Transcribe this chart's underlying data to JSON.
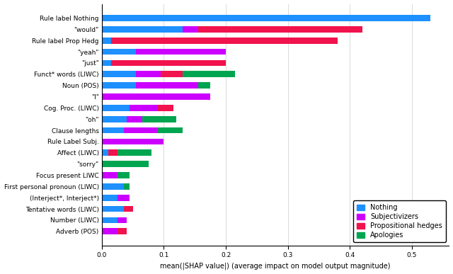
{
  "categories": [
    "Rule label Nothing",
    "\"would\"",
    "Rule label Prop Hedg",
    "\"yeah\"",
    "\"just\"",
    "Funct* words (LIWC)",
    "Noun (POS)",
    "\"I\"",
    "Cog. Proc. (LIWC)",
    "\"oh\"",
    "Clause lengths",
    "Rule Label Subj.",
    "Affect (LIWC)",
    "\"sorry\"",
    "Focus present LIWC",
    "First personal pronoun (LIWC)",
    "(Interject*, Interject*)",
    "Tentative words (LIWC)",
    "Number (LIWC)",
    "Adverb (POS)"
  ],
  "nothing": [
    0.53,
    0.13,
    0.015,
    0.055,
    0.015,
    0.055,
    0.055,
    0.0,
    0.045,
    0.04,
    0.035,
    0.0,
    0.01,
    0.0,
    0.0,
    0.035,
    0.025,
    0.035,
    0.025,
    0.0
  ],
  "subjectivizers": [
    0.0,
    0.025,
    0.0,
    0.145,
    0.0,
    0.04,
    0.1,
    0.175,
    0.045,
    0.025,
    0.055,
    0.1,
    0.0,
    0.0,
    0.025,
    0.0,
    0.02,
    0.0,
    0.015,
    0.025
  ],
  "prop_hedges": [
    0.0,
    0.265,
    0.365,
    0.0,
    0.185,
    0.035,
    0.0,
    0.0,
    0.025,
    0.0,
    0.0,
    0.0,
    0.015,
    0.0,
    0.0,
    0.0,
    0.0,
    0.015,
    0.0,
    0.015
  ],
  "apologies": [
    0.0,
    0.0,
    0.0,
    0.0,
    0.0,
    0.085,
    0.02,
    0.0,
    0.0,
    0.055,
    0.04,
    0.0,
    0.055,
    0.075,
    0.02,
    0.01,
    0.0,
    0.0,
    0.0,
    0.0
  ],
  "colors": {
    "nothing": "#1E90FF",
    "subjectivizers": "#CC00FF",
    "prop_hedges": "#F0134D",
    "apologies": "#00A550"
  },
  "xlabel": "mean(|SHAP value|) (average impact on model output magnitude)",
  "xlim": [
    0,
    0.56
  ],
  "xticks": [
    0.0,
    0.1,
    0.2,
    0.3,
    0.4,
    0.5
  ],
  "xtick_labels": [
    "0.0",
    "0.1",
    "0.2",
    "0.3",
    "0.4",
    "0.5"
  ],
  "legend_labels": [
    "Nothing",
    "Subjectivizers",
    "Propositional hedges",
    "Apologies"
  ],
  "bar_height": 0.55,
  "label_fontsize": 6.5,
  "tick_fontsize": 6.5,
  "xlabel_fontsize": 7.0
}
